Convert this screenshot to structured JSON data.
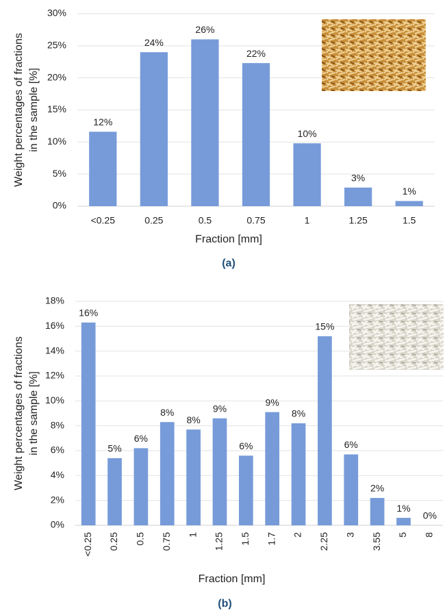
{
  "chart_data": [
    {
      "type": "bar",
      "caption": "(a)",
      "xlabel": "Fraction  [mm]",
      "ylabel": [
        "Weight percentages of  fractions",
        "in the sample [%]"
      ],
      "categories": [
        "<0.25",
        "0.25",
        "0.5",
        "0.75",
        "1",
        "1.25",
        "1.5"
      ],
      "values": [
        11.6,
        24,
        26,
        22.3,
        9.8,
        2.9,
        0.8
      ],
      "value_labels": [
        "12%",
        "24%",
        "26%",
        "22%",
        "10%",
        "3%",
        "1%"
      ],
      "color": "#779bd9",
      "grid": true,
      "ylim": [
        0,
        30
      ],
      "yticks": [
        {
          "value": 0,
          "label": "0%"
        },
        {
          "value": 5,
          "label": "5%"
        },
        {
          "value": 10,
          "label": "10%"
        },
        {
          "value": 15,
          "label": "15%"
        },
        {
          "value": 20,
          "label": "20%"
        },
        {
          "value": 25,
          "label": "25%"
        },
        {
          "value": 30,
          "label": "30%"
        }
      ]
    },
    {
      "type": "bar",
      "caption": "(b)",
      "xlabel": "Fraction  [mm]",
      "ylabel": [
        "Weight percentages of  fractions",
        "in the sample [%]"
      ],
      "categories": [
        "<0.25",
        "0.25",
        "0.5",
        "0.75",
        "1",
        "1.25",
        "1.5",
        "1.7",
        "2",
        "2.25",
        "3",
        "3.55",
        "5",
        "8"
      ],
      "values": [
        16.3,
        5.4,
        6.2,
        8.3,
        7.7,
        8.6,
        5.6,
        9.1,
        8.2,
        15.2,
        5.7,
        2.2,
        0.6,
        0
      ],
      "value_labels": [
        "16%",
        "5%",
        "6%",
        "8%",
        "8%",
        "9%",
        "6%",
        "9%",
        "8%",
        "15%",
        "6%",
        "2%",
        "1%",
        "0%"
      ],
      "color": "#779bd9",
      "grid": true,
      "ylim": [
        0,
        18
      ],
      "yticks": [
        {
          "value": 0,
          "label": "0%"
        },
        {
          "value": 2,
          "label": "2%"
        },
        {
          "value": 4,
          "label": "4%"
        },
        {
          "value": 6,
          "label": "6%"
        },
        {
          "value": 8,
          "label": "8%"
        },
        {
          "value": 10,
          "label": "10%"
        },
        {
          "value": 12,
          "label": "12%"
        },
        {
          "value": 14,
          "label": "14%"
        },
        {
          "value": 16,
          "label": "16%"
        },
        {
          "value": 18,
          "label": "18%"
        }
      ]
    }
  ]
}
